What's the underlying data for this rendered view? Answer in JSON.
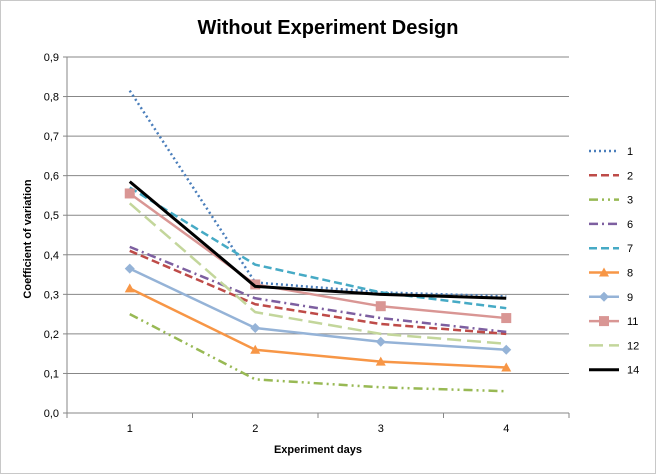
{
  "chart_data": {
    "type": "line",
    "title": "Without Experiment Design",
    "xlabel": "Experiment days",
    "ylabel": "Coefficient of variation",
    "x": [
      "1",
      "2",
      "3",
      "4"
    ],
    "ylim": [
      0,
      0.9
    ],
    "yticks": [
      "0,0",
      "0,1",
      "0,2",
      "0,3",
      "0,4",
      "0,5",
      "0,6",
      "0,7",
      "0,8",
      "0,9"
    ],
    "grid": true,
    "legend": "right",
    "series": [
      {
        "name": "1",
        "values": [
          0.815,
          0.33,
          0.305,
          0.295
        ],
        "color": "#4a7ebb",
        "dash": "dot",
        "marker": "none"
      },
      {
        "name": "2",
        "values": [
          0.41,
          0.275,
          0.225,
          0.2
        ],
        "color": "#be4b48",
        "dash": "dash",
        "marker": "none"
      },
      {
        "name": "3",
        "values": [
          0.25,
          0.085,
          0.065,
          0.055
        ],
        "color": "#98b954",
        "dash": "dashdotdot",
        "marker": "none"
      },
      {
        "name": "6",
        "values": [
          0.42,
          0.29,
          0.24,
          0.205
        ],
        "color": "#7d5fa0",
        "dash": "dashdot",
        "marker": "none"
      },
      {
        "name": "7",
        "values": [
          0.57,
          0.375,
          0.305,
          0.265
        ],
        "color": "#46aac5",
        "dash": "dash",
        "marker": "none"
      },
      {
        "name": "8",
        "values": [
          0.315,
          0.16,
          0.13,
          0.115
        ],
        "color": "#f79646",
        "dash": "solid",
        "marker": "triangle"
      },
      {
        "name": "9",
        "values": [
          0.365,
          0.215,
          0.18,
          0.16
        ],
        "color": "#95b3d7",
        "dash": "solid",
        "marker": "diamond"
      },
      {
        "name": "11",
        "values": [
          0.555,
          0.325,
          0.27,
          0.24
        ],
        "color": "#d99694",
        "dash": "solid",
        "marker": "square"
      },
      {
        "name": "12",
        "values": [
          0.53,
          0.255,
          0.2,
          0.175
        ],
        "color": "#c3d69b",
        "dash": "longdash",
        "marker": "none"
      },
      {
        "name": "14",
        "values": [
          0.585,
          0.32,
          0.3,
          0.29
        ],
        "color": "#000000",
        "dash": "solid",
        "marker": "none"
      }
    ]
  }
}
